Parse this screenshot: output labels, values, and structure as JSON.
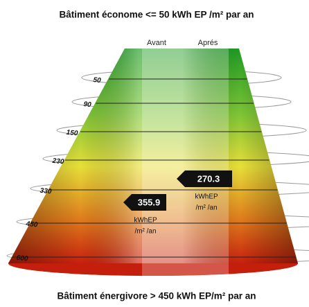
{
  "header": {
    "title": "Bâtiment économe <= 50 kWh EP /m² par an"
  },
  "columns": [
    "Avant",
    "Aprés"
  ],
  "levels": [
    "50",
    "90",
    "150",
    "230",
    "330",
    "450",
    "600"
  ],
  "markers": [
    {
      "value": "355.9",
      "unit_line1": "kWhEP",
      "unit_line2": "/m² /an"
    },
    {
      "value": "270.3",
      "unit_line1": "kWhEP",
      "unit_line2": "/m² /an"
    }
  ],
  "footer": {
    "title": "Bâtiment énergivore > 450 kWh EP/m² par an"
  }
}
